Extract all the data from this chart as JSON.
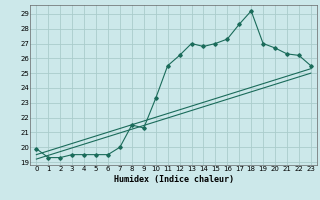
{
  "xlabel": "Humidex (Indice chaleur)",
  "bg_color": "#cce8ea",
  "grid_color": "#aacccc",
  "line_color": "#1a6b5a",
  "xlim": [
    -0.5,
    23.5
  ],
  "ylim": [
    18.8,
    29.6
  ],
  "yticks": [
    19,
    20,
    21,
    22,
    23,
    24,
    25,
    26,
    27,
    28,
    29
  ],
  "xticks": [
    0,
    1,
    2,
    3,
    4,
    5,
    6,
    7,
    8,
    9,
    10,
    11,
    12,
    13,
    14,
    15,
    16,
    17,
    18,
    19,
    20,
    21,
    22,
    23
  ],
  "curve1_x": [
    0,
    1,
    2,
    3,
    4,
    5,
    6,
    7,
    8,
    9,
    10,
    11,
    12,
    13,
    14,
    15,
    16,
    17,
    18,
    19,
    20,
    21,
    22,
    23
  ],
  "curve1_y": [
    19.9,
    19.3,
    19.3,
    19.5,
    19.5,
    19.5,
    19.5,
    20.0,
    21.5,
    21.3,
    23.3,
    25.5,
    26.2,
    27.0,
    26.8,
    27.0,
    27.3,
    28.3,
    29.2,
    27.0,
    26.7,
    26.3,
    26.2,
    25.5
  ],
  "curve2_x": [
    0,
    23
  ],
  "curve2_y": [
    19.5,
    25.3
  ],
  "curve3_x": [
    0,
    23
  ],
  "curve3_y": [
    19.2,
    25.0
  ]
}
